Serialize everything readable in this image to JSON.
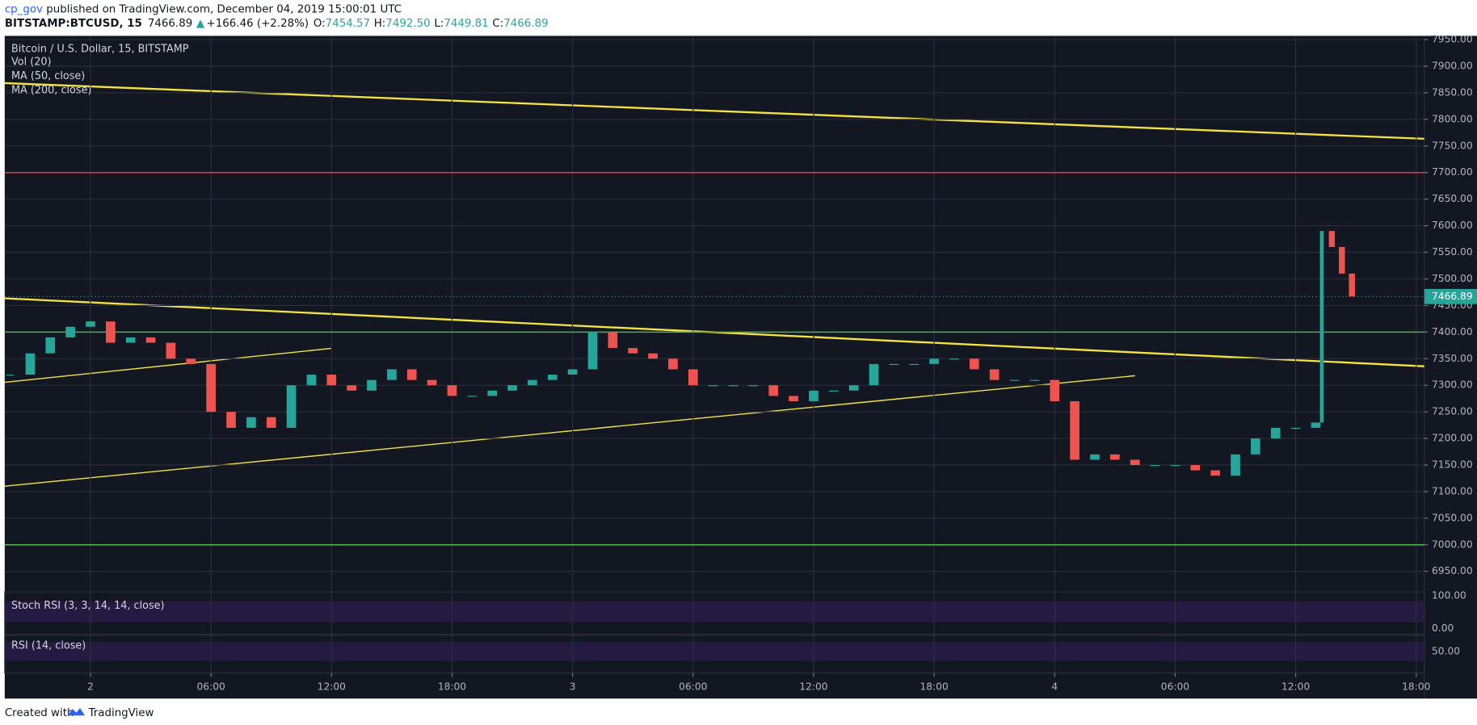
{
  "header": {
    "author": "cp_gov",
    "published": " published on TradingView.com, December 04, 2019 15:00:01 UTC",
    "symbol": "BITSTAMP:BTCUSD, 15",
    "last": "7466.89",
    "arrow": "▲",
    "change": "+166.46 (+2.28%)",
    "o_label": "O:",
    "open": "7454.57",
    "h_label": "H:",
    "high": "7492.50",
    "l_label": "L:",
    "low": "7449.81",
    "c_label": "C:",
    "close": "7466.89"
  },
  "legend": [
    "Bitcoin / U.S. Dollar, 15, BITSTAMP",
    "Vol (20)",
    "MA (50, close)",
    "MA (200, close)"
  ],
  "indicators": {
    "stoch": "Stoch RSI (3, 3, 14, 14, close)",
    "stoch_top": "100.00",
    "stoch_bottom": "0.00",
    "rsi": "RSI (14, close)",
    "rsi_mid": "50.00"
  },
  "footer": {
    "created": "Created with",
    "brand": "TradingView"
  },
  "chart_data": {
    "type": "candlestick",
    "x": [
      -4,
      -3,
      -2,
      -1,
      0,
      1,
      2,
      3,
      4,
      5,
      6,
      7,
      8,
      9,
      10,
      11,
      12,
      13,
      14,
      15,
      16,
      17,
      18,
      19,
      20,
      21,
      22,
      23,
      24,
      25,
      26,
      27,
      28,
      29,
      30,
      31,
      32,
      33,
      34,
      35,
      36,
      37,
      38,
      39,
      40,
      41,
      42,
      43,
      44,
      45,
      46,
      47,
      48,
      49,
      50,
      51,
      52,
      53,
      54,
      55,
      56,
      57,
      58,
      59,
      60,
      61,
      61.3,
      61.8,
      62.3,
      62.8
    ],
    "values": [
      7320,
      7360,
      7390,
      7410,
      7420,
      7380,
      7390,
      7380,
      7350,
      7340,
      7250,
      7220,
      7240,
      7220,
      7300,
      7320,
      7300,
      7290,
      7310,
      7330,
      7310,
      7300,
      7280,
      7280,
      7290,
      7300,
      7310,
      7320,
      7330,
      7400,
      7370,
      7360,
      7350,
      7330,
      7300,
      7300,
      7300,
      7300,
      7280,
      7270,
      7290,
      7290,
      7300,
      7340,
      7340,
      7340,
      7350,
      7350,
      7330,
      7310,
      7310,
      7310,
      7270,
      7160,
      7170,
      7160,
      7150,
      7150,
      7150,
      7140,
      7130,
      7170,
      7200,
      7220,
      7220,
      7230,
      7590,
      7560,
      7510,
      7466.89
    ],
    "colors": {
      "up": "#26a69a",
      "down": "#ef5350"
    },
    "levels": [
      {
        "value": 7700,
        "color": "#f23645"
      },
      {
        "value": 7400,
        "color": "#4caf50"
      },
      {
        "value": 7000,
        "color": "#4caf50"
      }
    ],
    "current": {
      "value": 7466.89,
      "label": "7466.89"
    },
    "xlim": [
      -4.27,
      66.4
    ],
    "ylim": [
      6915,
      7957
    ],
    "xticks": [
      {
        "value": 0,
        "label": "2"
      },
      {
        "value": 6,
        "label": "06:00"
      },
      {
        "value": 12,
        "label": "12:00"
      },
      {
        "value": 18,
        "label": "18:00"
      },
      {
        "value": 24,
        "label": "3"
      },
      {
        "value": 30,
        "label": "06:00"
      },
      {
        "value": 36,
        "label": "12:00"
      },
      {
        "value": 42,
        "label": "18:00"
      },
      {
        "value": 48,
        "label": "4"
      },
      {
        "value": 54,
        "label": "06:00"
      },
      {
        "value": 60,
        "label": "12:00"
      },
      {
        "value": 66,
        "label": "18:00"
      }
    ],
    "yticks": [
      {
        "value": 6950,
        "label": "6950.00"
      },
      {
        "value": 7000,
        "label": "7000.00"
      },
      {
        "value": 7050,
        "label": "7050.00"
      },
      {
        "value": 7100,
        "label": "7100.00"
      },
      {
        "value": 7150,
        "label": "7150.00"
      },
      {
        "value": 7200,
        "label": "7200.00"
      },
      {
        "value": 7250,
        "label": "7250.00"
      },
      {
        "value": 7300,
        "label": "7300.00"
      },
      {
        "value": 7350,
        "label": "7350.00"
      },
      {
        "value": 7400,
        "label": "7400.00"
      },
      {
        "value": 7450,
        "label": "7450.00"
      },
      {
        "value": 7500,
        "label": "7500.00"
      },
      {
        "value": 7550,
        "label": "7550.00"
      },
      {
        "value": 7600,
        "label": "7600.00"
      },
      {
        "value": 7650,
        "label": "7650.00"
      },
      {
        "value": 7700,
        "label": "7700.00"
      },
      {
        "value": 7750,
        "label": "7750.00"
      },
      {
        "value": 7800,
        "label": "7800.00"
      },
      {
        "value": 7850,
        "label": "7850.00"
      },
      {
        "value": 7900,
        "label": "7900.00"
      },
      {
        "value": 7950,
        "label": "7950.00"
      }
    ],
    "grid": true
  }
}
